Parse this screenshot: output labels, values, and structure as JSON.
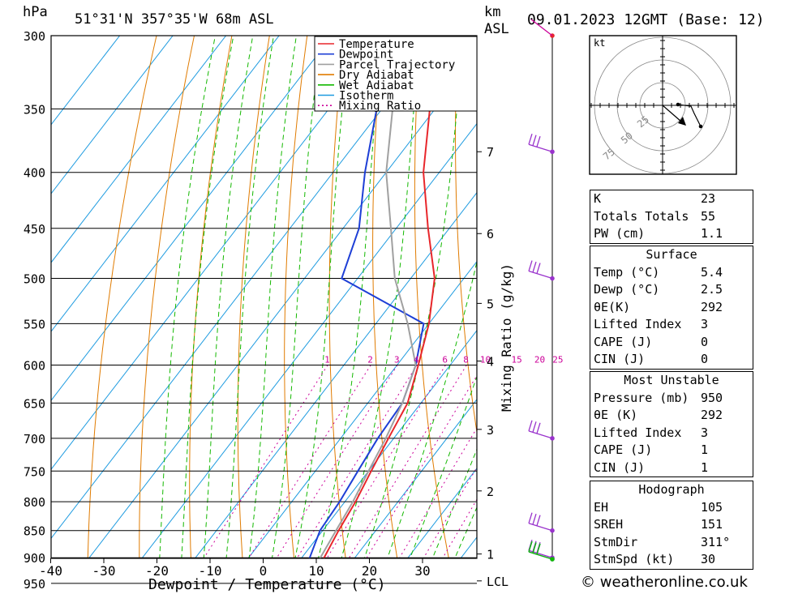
{
  "header": {
    "unit_p": "hPa",
    "location": "51°31'N  357°35'W  68m  ASL",
    "unit_km": "km",
    "unit_asl": "ASL",
    "datetime": "09.01.2023  12GMT  (Base: 12)"
  },
  "legend": [
    "Temperature",
    "Dewpoint",
    "Parcel Trajectory",
    "Dry Adiabat",
    "Wet Adiabat",
    "Isotherm",
    "Mixing Ratio"
  ],
  "colors": {
    "temperature": "#e8262b",
    "dewpoint": "#1e3fd6",
    "parcel": "#a0a0a0",
    "dry_adiabat": "#e07b00",
    "wet_adiabat": "#13b800",
    "isotherm": "#1e9be0",
    "mixing": "#cc0099",
    "wind": "#9933cc"
  },
  "axis": {
    "xlabel": "Dewpoint / Temperature (°C)",
    "mixing_label": "Mixing Ratio (g/kg)"
  },
  "copyright": "© weatheronline.co.uk",
  "hodograph": {
    "unit": "kt",
    "rings": [
      "25",
      "50",
      "75"
    ]
  },
  "indices": [
    {
      "label": "K",
      "value": "23"
    },
    {
      "label": "Totals Totals",
      "value": "55"
    },
    {
      "label": "PW (cm)",
      "value": "1.1"
    }
  ],
  "surface": {
    "title": "Surface",
    "rows": [
      {
        "label": "Temp (°C)",
        "value": "5.4"
      },
      {
        "label": "Dewp (°C)",
        "value": "2.5"
      },
      {
        "label": "θE(K)",
        "value": "292"
      },
      {
        "label": "Lifted Index",
        "value": "3"
      },
      {
        "label": "CAPE (J)",
        "value": "0"
      },
      {
        "label": "CIN (J)",
        "value": "0"
      }
    ]
  },
  "most_unstable": {
    "title": "Most Unstable",
    "rows": [
      {
        "label": "Pressure (mb)",
        "value": "950"
      },
      {
        "label": "θE (K)",
        "value": "292"
      },
      {
        "label": "Lifted Index",
        "value": "3"
      },
      {
        "label": "CAPE (J)",
        "value": "1"
      },
      {
        "label": "CIN (J)",
        "value": "1"
      }
    ]
  },
  "hodo_table": {
    "title": "Hodograph",
    "rows": [
      {
        "label": "EH",
        "value": "105"
      },
      {
        "label": "SREH",
        "value": "151"
      },
      {
        "label": "StmDir",
        "value": "311°"
      },
      {
        "label": "StmSpd (kt)",
        "value": "30"
      }
    ]
  },
  "chart_data": {
    "type": "line",
    "title": "51°31'N  357°35'W  68m  ASL",
    "xlabel": "Dewpoint / Temperature (°C)",
    "ylabel": "hPa",
    "x_ticks": [
      -40,
      -30,
      -20,
      -10,
      0,
      10,
      20,
      30
    ],
    "pressure_levels": [
      300,
      350,
      400,
      450,
      500,
      550,
      600,
      650,
      700,
      750,
      800,
      850,
      900,
      950
    ],
    "km_ticks": [
      {
        "label": "7",
        "p": 383
      },
      {
        "label": "6",
        "p": 455
      },
      {
        "label": "5",
        "p": 527
      },
      {
        "label": "4",
        "p": 595
      },
      {
        "label": "3",
        "p": 687
      },
      {
        "label": "2",
        "p": 782
      },
      {
        "label": "1",
        "p": 893
      },
      {
        "label": "LCL",
        "p": 945
      }
    ],
    "mixing_ratio_labels": [
      "1",
      "2",
      "3",
      "4",
      "6",
      "8",
      "10",
      "15",
      "20",
      "25"
    ],
    "series": [
      {
        "name": "Temperature",
        "points": [
          [
            300,
            -38.5
          ],
          [
            350,
            -41
          ],
          [
            400,
            -33
          ],
          [
            450,
            -24
          ],
          [
            500,
            -15.5
          ],
          [
            550,
            -10
          ],
          [
            600,
            -6
          ],
          [
            650,
            -2.5
          ],
          [
            700,
            -1
          ],
          [
            750,
            0.5
          ],
          [
            800,
            2
          ],
          [
            850,
            3
          ],
          [
            900,
            4.2
          ],
          [
            950,
            5
          ],
          [
            985,
            5.4
          ]
        ]
      },
      {
        "name": "Dewpoint",
        "points": [
          [
            300,
            -57
          ],
          [
            350,
            -51
          ],
          [
            400,
            -44
          ],
          [
            450,
            -37
          ],
          [
            500,
            -33
          ],
          [
            550,
            -11
          ],
          [
            600,
            -6.5
          ],
          [
            650,
            -3.5
          ],
          [
            700,
            -3
          ],
          [
            750,
            -2
          ],
          [
            800,
            -1
          ],
          [
            850,
            -0.5
          ],
          [
            900,
            1.5
          ],
          [
            950,
            2
          ],
          [
            985,
            2.5
          ]
        ]
      },
      {
        "name": "Parcel Trajectory",
        "points": [
          [
            300,
            -56
          ],
          [
            350,
            -48
          ],
          [
            400,
            -40
          ],
          [
            450,
            -31
          ],
          [
            500,
            -23
          ],
          [
            550,
            -14
          ],
          [
            600,
            -6.5
          ],
          [
            650,
            -3.5
          ],
          [
            700,
            -1.5
          ],
          [
            750,
            0
          ],
          [
            800,
            1.5
          ],
          [
            850,
            2.5
          ],
          [
            900,
            3.5
          ],
          [
            950,
            4
          ],
          [
            985,
            4.5
          ]
        ]
      }
    ],
    "wind_levels": [
      300,
      383,
      500,
      700,
      850,
      900,
      920,
      990
    ]
  }
}
